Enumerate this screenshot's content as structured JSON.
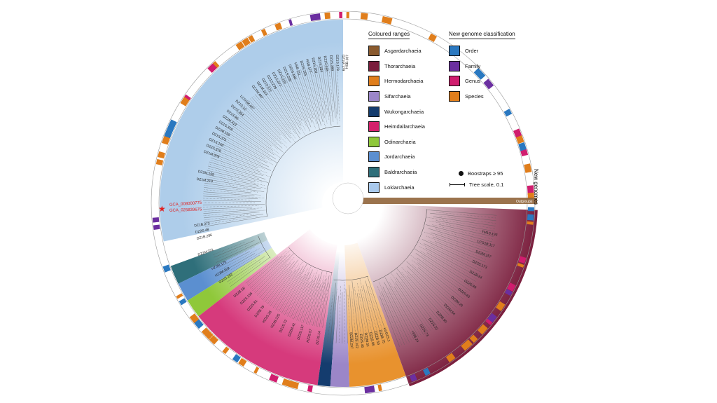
{
  "legend_ranges": {
    "title": "Coloured ranges",
    "items": [
      {
        "label": "Asgardarchaeia",
        "color": "#8a5a2e"
      },
      {
        "label": "Thorarchaeia",
        "color": "#7a1d3c"
      },
      {
        "label": "Hermodarchaeia",
        "color": "#e07e1c"
      },
      {
        "label": "Sifarchaeia",
        "color": "#9b86c8"
      },
      {
        "label": "Wukongarchaeia",
        "color": "#143c6e"
      },
      {
        "label": "Heimdallarchaeia",
        "color": "#d4216c"
      },
      {
        "label": "Odinarchaeia",
        "color": "#8fc83a"
      },
      {
        "label": "Jordarchaeia",
        "color": "#5b8fd0"
      },
      {
        "label": "Baldrarchaeia",
        "color": "#2f6f7a"
      },
      {
        "label": "Lokiarchaeia",
        "color": "#a9c9ec"
      }
    ]
  },
  "legend_classification": {
    "title": "New genome classification",
    "items": [
      {
        "label": "Order",
        "color": "#2a78c0"
      },
      {
        "label": "Family",
        "color": "#6b2fa0"
      },
      {
        "label": "Genus",
        "color": "#d01d6e"
      },
      {
        "label": "Species",
        "color": "#e07e1c"
      }
    ]
  },
  "bootstrap_label": "Boostraps ≥ 95",
  "tree_scale_label": "Tree scale, 0.1",
  "ring_label": "New genomes",
  "outgroups_label": "Outgroups",
  "highlight_labels": [
    "GCA_008000775",
    "GCA_025839675"
  ],
  "leaf_labels": {
    "loki_top": [
      "HSB.167",
      "DZ1M.179",
      "DZ1S.179",
      "DZ2S.399",
      "DZ1S.118",
      "DZ2S.184",
      "DZ1S.164",
      "HSB.177",
      "DZ2S.155",
      "HSB.111",
      "DZ2S.165",
      "DZ1S.209",
      "DZ1S.219",
      "DZ1S.277",
      "DZ1S.278",
      "DZ1S.371",
      "DZ1M.113",
      "DZ1M.447"
    ],
    "loki_mid": [
      "LCG1M.467",
      "DZ1S.12",
      "DZ2S.394",
      "DZ1S.93",
      "DZ2M.413",
      "DZ1S.378",
      "DZ2M.158",
      "DZ1S.375",
      "DZ1S.148",
      "DZ2S.376",
      "DZ1M.378"
    ],
    "loki_low": [
      "DZ2M.159",
      "DZ1M.219"
    ],
    "loki_bottom": [
      "DZ1B.272",
      "DZ2S.48",
      "DZ1B.286"
    ],
    "bald": [
      "DZ2M.331"
    ],
    "odin": [
      "HZ3M.176",
      "HZ2M.222",
      "DZ2S.202"
    ],
    "heim": [
      "DZ2B.58",
      "DZ2S.155",
      "DZ2S.81",
      "DZ2B.79",
      "HZ3S.28",
      "HZ1B.225",
      "DZ1S.72",
      "DZ2M.41",
      "DZ2S.117",
      "HZ2S.57",
      "DZ1S.14"
    ],
    "hermod": [
      "DZ2M.207",
      "DZ1S.102",
      "DZ2S.46",
      "DZ2M.51",
      "DZ1S.95",
      "DZ2B.50",
      "DZ1B.75",
      "LCG1S.1"
    ],
    "thor": [
      "TM1S.193",
      "LCG1B.117",
      "DZ2M.157",
      "DZ2S.173",
      "DZ1B.94",
      "DZ2S.89",
      "DZ2S.63",
      "DZ2M.29",
      "DZ1M.64",
      "DZ2M.90",
      "DZ1S.32",
      "DZ2S.73",
      "HSB.24"
    ]
  }
}
